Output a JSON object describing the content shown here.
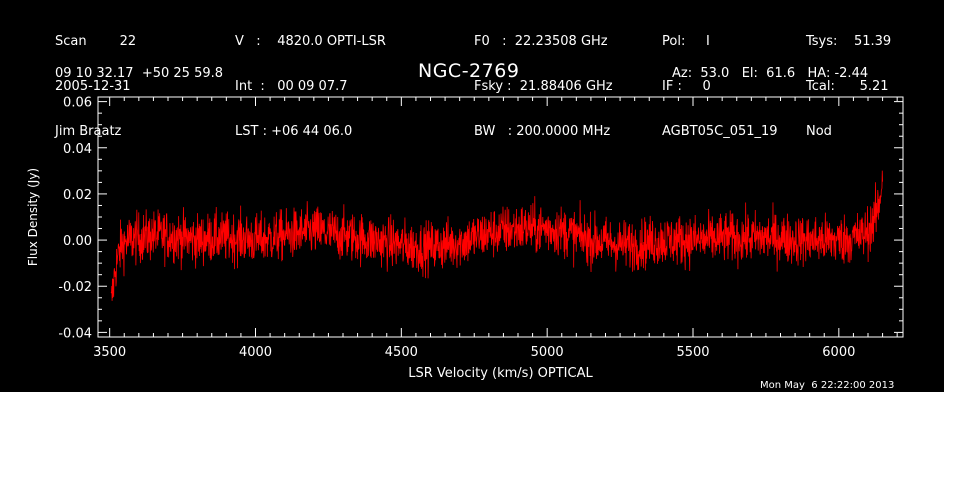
{
  "header": {
    "col1": [
      "Scan        22",
      "2005-12-31",
      "Jim Braatz"
    ],
    "col2": [
      "V   :    4820.0 OPTI-LSR",
      "Int  :   00 09 07.7",
      "LST : +06 44 06.0"
    ],
    "col3": [
      "F0   :  22.23508 GHz",
      "Fsky :  21.88406 GHz",
      "BW   : 200.0000 MHz"
    ],
    "col4": [
      "Pol:     I",
      "IF :     0",
      "AGBT05C_051_19"
    ],
    "col5": [
      "Tsys:    51.39",
      "Tcal:      5.21",
      "Nod"
    ],
    "coords": "09 10 32.17  +50 25 59.8",
    "source": "NGC-2769",
    "azel": "Az:  53.0   El:  61.6   HA: -2.44",
    "timestamp": "Mon May  6 22:22:00 2013"
  },
  "colors": {
    "background": "#000000",
    "trace": "#ff0000",
    "axes": "#ffffff"
  },
  "chart_data": {
    "type": "line",
    "title": "NGC-2769",
    "xlabel": "LSR Velocity (km/s) OPTICAL",
    "ylabel": "Flux Density (Jy)",
    "xlim": [
      3460,
      6220
    ],
    "ylim": [
      -0.042,
      0.062
    ],
    "xticks": [
      3500,
      4000,
      4500,
      5000,
      5500,
      6000
    ],
    "xtick_labels": [
      "3500",
      "4000",
      "4500",
      "5000",
      "5500",
      "6000"
    ],
    "yticks": [
      -0.04,
      -0.02,
      0.0,
      0.02,
      0.04,
      0.06
    ],
    "ytick_labels": [
      "-0.04",
      "-0.02",
      "0.00",
      "0.02",
      "0.04",
      "0.06"
    ],
    "grid": false,
    "series": [
      {
        "color": "#ff0000",
        "x": [
          3505,
          3520,
          3540,
          3570,
          3600,
          3650,
          3700,
          3750,
          3800,
          3850,
          3900,
          3950,
          4000,
          4050,
          4100,
          4150,
          4200,
          4250,
          4300,
          4350,
          4400,
          4450,
          4500,
          4550,
          4600,
          4650,
          4700,
          4750,
          4800,
          4850,
          4900,
          4950,
          5000,
          5050,
          5100,
          5150,
          5200,
          5250,
          5300,
          5350,
          5400,
          5450,
          5500,
          5550,
          5600,
          5650,
          5700,
          5750,
          5800,
          5850,
          5900,
          5950,
          6000,
          6050,
          6080,
          6100,
          6120,
          6135,
          6145,
          6150
        ],
        "y": [
          -0.028,
          -0.012,
          -0.002,
          0.0,
          0.001,
          0.002,
          0.002,
          0.001,
          0.0,
          0.001,
          0.001,
          0.001,
          0.0,
          0.001,
          0.002,
          0.003,
          0.004,
          0.003,
          0.002,
          0.001,
          0.0,
          -0.001,
          -0.002,
          -0.003,
          -0.003,
          -0.002,
          -0.001,
          0.001,
          0.003,
          0.004,
          0.005,
          0.005,
          0.005,
          0.004,
          0.002,
          0.0,
          -0.001,
          -0.002,
          -0.002,
          -0.001,
          0.0,
          0.0,
          0.0,
          0.0,
          0.001,
          0.001,
          0.001,
          0.001,
          0.001,
          0.0,
          0.0,
          0.0,
          0.0,
          0.001,
          0.002,
          0.004,
          0.008,
          0.014,
          0.022,
          0.03
        ],
        "noise_rms": 0.0055
      }
    ]
  }
}
